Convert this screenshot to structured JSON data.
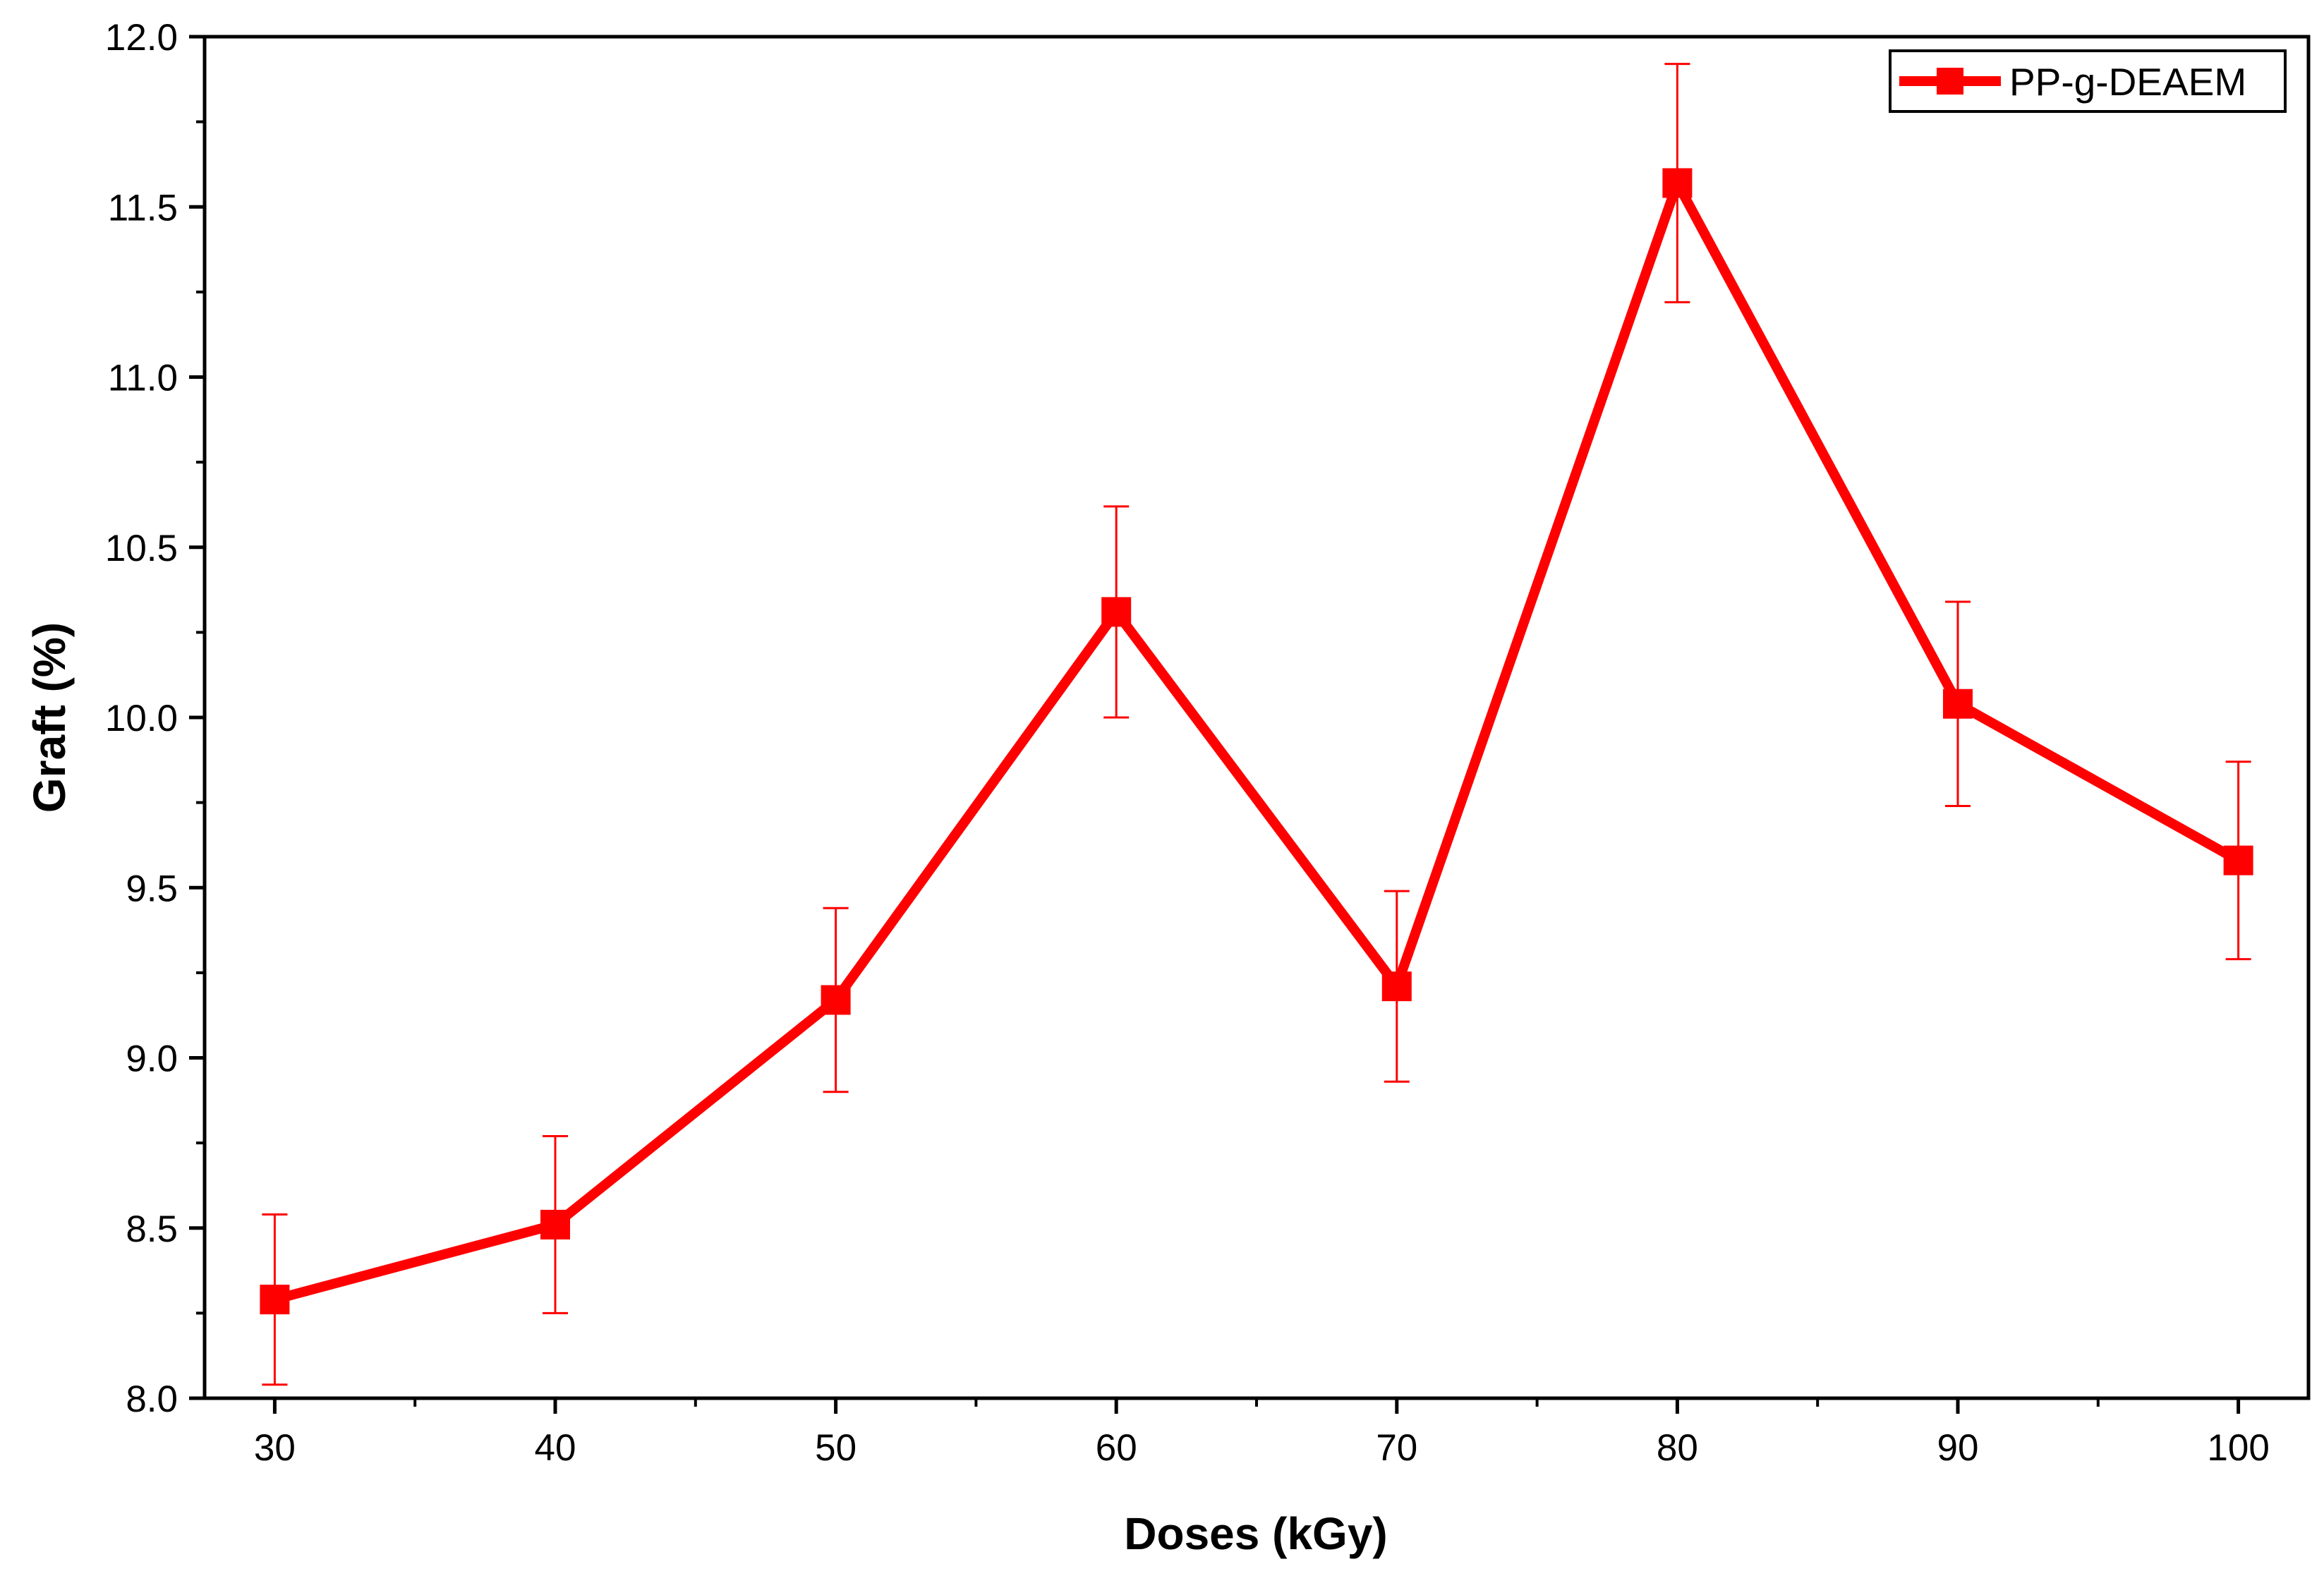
{
  "chart_data": {
    "type": "line",
    "xlabel": "Doses (kGy)",
    "ylabel": "Graft (%)",
    "xlim": [
      27.5,
      102.5
    ],
    "ylim": [
      8.0,
      12.0
    ],
    "x_ticks": [
      30,
      40,
      50,
      60,
      70,
      80,
      90,
      100
    ],
    "y_ticks": [
      "8.0",
      "8.5",
      "9.0",
      "9.5",
      "10.0",
      "10.5",
      "11.0",
      "11.5",
      "12.0"
    ],
    "grid": false,
    "legend_position": "top-right",
    "series": [
      {
        "name": "PP-g-DEAEM",
        "color": "#ff0000",
        "marker": "square",
        "x": [
          30,
          40,
          50,
          60,
          70,
          80,
          90,
          100
        ],
        "y": [
          8.29,
          8.51,
          9.17,
          10.31,
          9.21,
          11.57,
          10.04,
          9.58
        ],
        "error": [
          0.25,
          0.26,
          0.27,
          0.31,
          0.28,
          0.35,
          0.3,
          0.29
        ]
      }
    ]
  }
}
